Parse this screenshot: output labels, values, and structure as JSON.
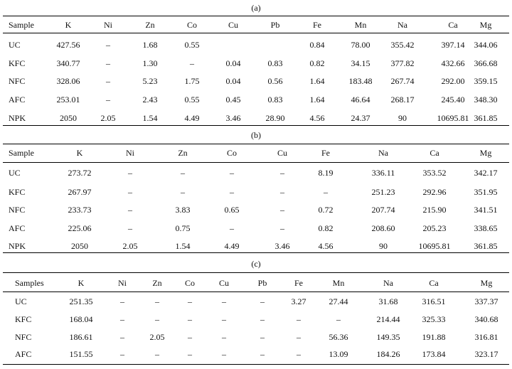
{
  "tables": [
    {
      "caption": "(a)",
      "headers": [
        "Sample",
        "K",
        "Ni",
        "Zn",
        "Co",
        "Cu",
        "Pb",
        "Fe",
        "Mn",
        "Na",
        "Ca",
        "Mg"
      ],
      "rows": [
        [
          "UC",
          "427.56",
          "–",
          "1.68",
          "0.55",
          "",
          "",
          "0.84",
          "78.00",
          "355.42",
          "397.14",
          "344.06"
        ],
        [
          "KFC",
          "340.77",
          "–",
          "1.30",
          "–",
          "0.04",
          "0.83",
          "0.82",
          "34.15",
          "377.82",
          "432.66",
          "366.68"
        ],
        [
          "NFC",
          "328.06",
          "–",
          "5.23",
          "1.75",
          "0.04",
          "0.56",
          "1.64",
          "183.48",
          "267.74",
          "292.00",
          "359.15"
        ],
        [
          "AFC",
          "253.01",
          "–",
          "2.43",
          "0.55",
          "0.45",
          "0.83",
          "1.64",
          "46.64",
          "268.17",
          "245.40",
          "348.30"
        ],
        [
          "NPK",
          "2050",
          "2.05",
          "1.54",
          "4.49",
          "3.46",
          "28.90",
          "4.56",
          "24.37",
          "90",
          "10695.81",
          "361.85"
        ]
      ]
    },
    {
      "caption": "(b)",
      "headers": [
        "Sample",
        "K",
        "Ni",
        "Zn",
        "Co",
        "Cu",
        "Fe",
        "Na",
        "Ca",
        "Mg"
      ],
      "rows": [
        [
          "UC",
          "273.72",
          "–",
          "–",
          "–",
          "–",
          "8.19",
          "336.11",
          "353.52",
          "342.17"
        ],
        [
          "KFC",
          "267.97",
          "–",
          "–",
          "–",
          "–",
          "–",
          "251.23",
          "292.96",
          "351.95"
        ],
        [
          "NFC",
          "233.73",
          "–",
          "3.83",
          "0.65",
          "–",
          "0.72",
          "207.74",
          "215.90",
          "341.51"
        ],
        [
          "AFC",
          "225.06",
          "–",
          "0.75",
          "–",
          "–",
          "0.82",
          "208.60",
          "205.23",
          "338.65"
        ],
        [
          "NPK",
          "2050",
          "2.05",
          "1.54",
          "4.49",
          "3.46",
          "4.56",
          "90",
          "10695.81",
          "361.85"
        ]
      ]
    },
    {
      "caption": "(c)",
      "headers": [
        "Samples",
        "K",
        "Ni",
        "Zn",
        "Co",
        "Cu",
        "Pb",
        "Fe",
        "Mn",
        "Na",
        "Ca",
        "Mg"
      ],
      "rows": [
        [
          "UC",
          "251.35",
          "–",
          "–",
          "–",
          "–",
          "–",
          "3.27",
          "27.44",
          "31.68",
          "316.51",
          "337.37"
        ],
        [
          "KFC",
          "168.04",
          "–",
          "–",
          "–",
          "–",
          "–",
          "–",
          "–",
          "214.44",
          "325.33",
          "340.68"
        ],
        [
          "NFC",
          "186.61",
          "–",
          "2.05",
          "–",
          "–",
          "–",
          "–",
          "56.36",
          "149.35",
          "191.88",
          "316.81"
        ],
        [
          "AFC",
          "151.55",
          "–",
          "–",
          "–",
          "–",
          "–",
          "–",
          "13.09",
          "184.26",
          "173.84",
          "323.17"
        ]
      ]
    }
  ]
}
